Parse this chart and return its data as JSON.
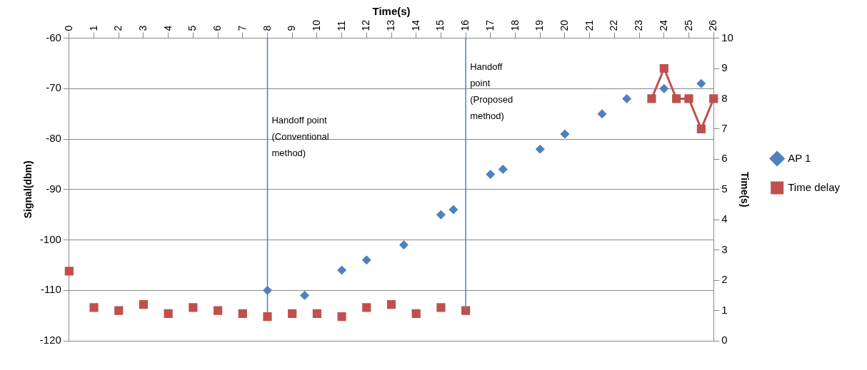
{
  "chart_data": {
    "type": "scatter",
    "xlabel": "Time(s)",
    "ylabel": "Signal(dbm)",
    "y2label": "Time(s)",
    "xlim": [
      0,
      26
    ],
    "xticks": [
      0,
      1,
      2,
      3,
      4,
      5,
      6,
      7,
      8,
      9,
      10,
      11,
      12,
      13,
      14,
      15,
      16,
      17,
      18,
      19,
      20,
      21,
      22,
      23,
      24,
      25,
      26
    ],
    "ylim": [
      -120,
      -60
    ],
    "yticks": [
      -120,
      -110,
      -100,
      -90,
      -80,
      -70,
      -60
    ],
    "y2lim": [
      0,
      10
    ],
    "y2ticks": [
      0,
      1,
      2,
      3,
      4,
      5,
      6,
      7,
      8,
      9,
      10
    ],
    "grid": "y",
    "legend": "right",
    "series": [
      {
        "name": "AP 1",
        "marker": "diamond",
        "color": "#4f81bd",
        "x": [
          8,
          9.5,
          11,
          12,
          13.5,
          15,
          15.5,
          17,
          17.5,
          19,
          20,
          21.5,
          22.5,
          24,
          25.5
        ],
        "values": [
          -110,
          -111,
          -106,
          -104,
          -101,
          -95,
          -94,
          -87,
          -86,
          -82,
          -79,
          -75,
          -72,
          -70,
          -69
        ]
      },
      {
        "name": "Time delay",
        "type": "line",
        "axis": "y2",
        "marker": "square",
        "color": "#c0504d",
        "x": [
          0,
          0.5,
          1,
          1.5,
          2,
          2.5,
          3,
          3.5,
          4,
          4.5,
          5,
          5.5,
          6,
          6.5,
          7,
          7.5,
          8,
          8.5,
          9,
          9.5,
          10,
          10.5,
          11,
          11.5,
          12,
          12.5,
          13,
          13.5,
          14,
          14.5,
          15,
          15.5,
          16,
          16.5,
          23.5,
          24,
          24.5,
          25,
          25.5,
          26
        ],
        "values": [
          2.3,
          null,
          1.1,
          null,
          1,
          null,
          1.2,
          null,
          0.9,
          null,
          1.1,
          null,
          1,
          null,
          0.9,
          null,
          0.8,
          null,
          0.9,
          null,
          0.9,
          null,
          0.8,
          null,
          1.1,
          null,
          1.2,
          null,
          0.9,
          null,
          1.1,
          null,
          1,
          null,
          8,
          9,
          8,
          8,
          7,
          8
        ]
      }
    ],
    "ref_lines": [
      {
        "axis": "x",
        "value": 8,
        "label": "Handoff point (Conventional method)",
        "color": "#4f81bd"
      },
      {
        "axis": "x",
        "value": 16,
        "label": "Handoff point (Proposed method)",
        "color": "#4f81bd"
      }
    ]
  }
}
